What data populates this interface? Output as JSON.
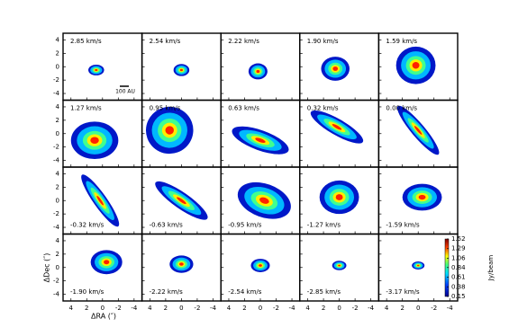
{
  "chart_data": {
    "type": "channel-map",
    "x_label": "ΔRA (″)",
    "y_label": "ΔDec (″)",
    "xlim": [
      5,
      -5
    ],
    "ylim": [
      -5,
      5
    ],
    "xticks": [
      4,
      2,
      0,
      -2,
      -4
    ],
    "yticks": [
      4,
      2,
      0,
      -2,
      -4
    ],
    "scale_bar": "100 AU",
    "colorbar_label": "Jy/beam",
    "clim": [
      0.15,
      1.52
    ],
    "colorbar_ticks": [
      1.52,
      1.29,
      1.06,
      0.84,
      0.61,
      0.38,
      0.15
    ],
    "panels": [
      {
        "label": "2.85 km/s"
      },
      {
        "label": "2.54 km/s"
      },
      {
        "label": "2.22 km/s"
      },
      {
        "label": "1.90 km/s"
      },
      {
        "label": "1.59 km/s"
      },
      {
        "label": "1.27 km/s"
      },
      {
        "label": "0.95 km/s"
      },
      {
        "label": "0.63 km/s"
      },
      {
        "label": "0.32 km/s"
      },
      {
        "label": "0.00 km/s"
      },
      {
        "label": "-0.32 km/s"
      },
      {
        "label": "-0.63 km/s"
      },
      {
        "label": "-0.95 km/s"
      },
      {
        "label": "-1.27 km/s"
      },
      {
        "label": "-1.59 km/s"
      },
      {
        "label": "-1.90 km/s"
      },
      {
        "label": "-2.22 km/s"
      },
      {
        "label": "-2.54 km/s"
      },
      {
        "label": "-2.85 km/s"
      },
      {
        "label": "-3.17 km/s"
      }
    ]
  }
}
